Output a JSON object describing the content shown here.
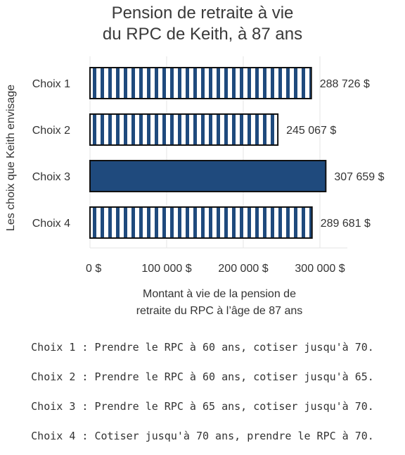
{
  "chart_data": {
    "type": "bar",
    "orientation": "horizontal",
    "title_lines": [
      "Pension de retraite à vie",
      "du RPC de Keith, à 87 ans"
    ],
    "ylabel": "Les choix que Keith envisage",
    "xlabel_lines": [
      "Montant à vie de la pension de",
      "retraite du RPC à l’âge de 87 ans"
    ],
    "categories": [
      "Choix 1",
      "Choix 2",
      "Choix 3",
      "Choix 4"
    ],
    "values": [
      288726,
      245067,
      307659,
      289681
    ],
    "value_labels": [
      "288 726 $",
      "245 067 $",
      "307 659 $",
      "289 681 $"
    ],
    "patterns": [
      "striped",
      "striped",
      "solid",
      "striped"
    ],
    "xticks": [
      0,
      100000,
      200000,
      300000
    ],
    "xtick_labels": [
      "0 $",
      "100 000 $",
      "200 000 $",
      "300 000 $"
    ],
    "xlim": [
      0,
      340000
    ],
    "grid": true,
    "colors": {
      "bar": "#1f4a7d",
      "stripe": "#ffffff",
      "outline": "#111111",
      "grid": "#e6e6e6"
    }
  },
  "notes": [
    "Choix 1 : Prendre le RPC à 60 ans, cotiser jusqu'à 70.",
    "Choix 2 : Prendre le RPC à 60 ans, cotiser jusqu'à 65.",
    "Choix 3 : Prendre le RPC à 65 ans, cotiser jusqu'à 70.",
    "Choix 4 : Cotiser jusqu'à 70 ans, prendre le RPC à 70."
  ]
}
